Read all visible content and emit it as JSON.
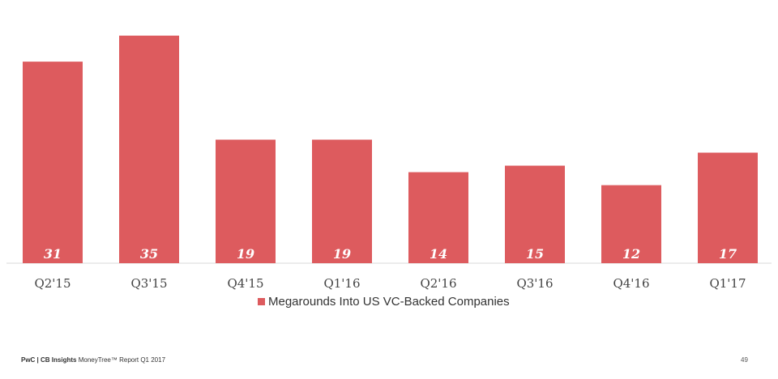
{
  "chart_data": {
    "type": "bar",
    "categories": [
      "Q2'15",
      "Q3'15",
      "Q4'15",
      "Q1'16",
      "Q2'16",
      "Q3'16",
      "Q4'16",
      "Q1'17"
    ],
    "series": [
      {
        "name": "Megarounds Into US VC-Backed Companies",
        "values": [
          31,
          35,
          19,
          19,
          14,
          15,
          12,
          17
        ]
      }
    ],
    "data_labels": [
      "31",
      "35",
      "19",
      "19",
      "14",
      "15",
      "12",
      "17"
    ],
    "bar_color": "#dd5b5e",
    "ylim": [
      0,
      35
    ],
    "grid": false,
    "legend_position": "bottom-center"
  },
  "footer": {
    "brand": "PwC | CB Insights",
    "report": "MoneyTree™ Report Q1 2017",
    "page": "49"
  }
}
